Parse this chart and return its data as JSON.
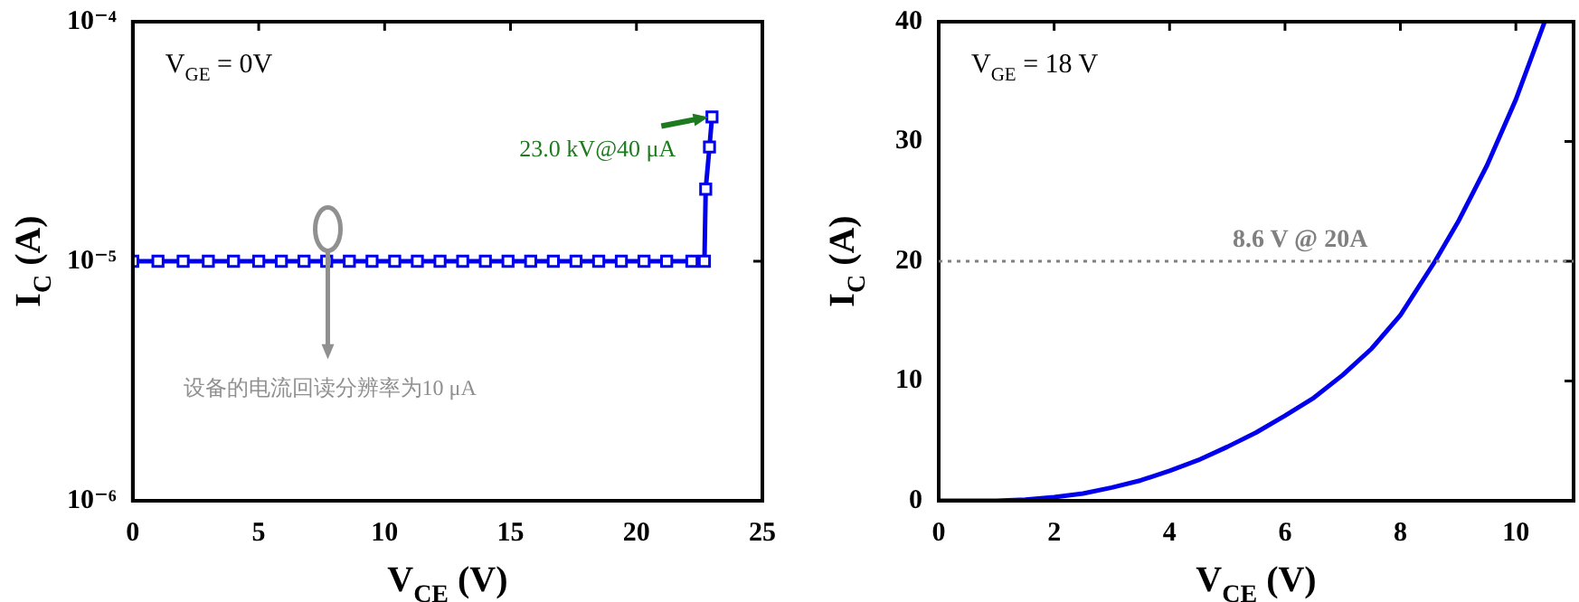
{
  "chart_data": [
    {
      "type": "line",
      "xlabel": "V$_{CE}$ (V)",
      "ylabel": "I$_{C}$ (A)",
      "log": "y",
      "grid": false,
      "legend": false,
      "marker": "square",
      "line_style": "solid",
      "xlim": [
        0,
        25
      ],
      "xticks": [
        0,
        5,
        10,
        15,
        20,
        25
      ],
      "ylim": [
        1e-06,
        0.0001
      ],
      "yticks": [
        {
          "value": 1e-06,
          "label": "10⁻⁶"
        },
        {
          "value": 1e-05,
          "label": "10⁻⁵"
        },
        {
          "value": 0.0001,
          "label": "10⁻⁴"
        }
      ],
      "x": [
        0,
        1,
        2,
        3,
        4,
        5,
        5.9,
        6.8,
        7.7,
        8.6,
        9.5,
        10.4,
        11.3,
        12.2,
        13.1,
        14,
        14.9,
        15.8,
        16.7,
        17.6,
        18.5,
        19.4,
        20.3,
        21.2,
        22.2,
        22.7,
        22.75,
        22.9,
        23.0
      ],
      "series": [
        {
          "color": "#0000ee",
          "values": [
            1e-05,
            1e-05,
            1e-05,
            1e-05,
            1e-05,
            1e-05,
            1e-05,
            1e-05,
            1e-05,
            1e-05,
            1e-05,
            1e-05,
            1e-05,
            1e-05,
            1e-05,
            1e-05,
            1e-05,
            1e-05,
            1e-05,
            1e-05,
            1e-05,
            1e-05,
            1e-05,
            1e-05,
            1e-05,
            1e-05,
            2e-05,
            3e-05,
            4e-05
          ]
        }
      ],
      "annotations": [
        "V$_{GE}$ = 0V",
        {
          "text": "23.0 kV@40 μA",
          "x": 23.0,
          "y": 4e-05
        },
        "设备的电流回读分辨率为10 μA"
      ]
    },
    {
      "type": "line",
      "xlabel": "V$_{CE}$ (V)",
      "ylabel": "I$_{C}$ (A)",
      "grid": false,
      "legend": false,
      "marker": "none",
      "line_style": "solid",
      "xlim": [
        0,
        11
      ],
      "xticks": [
        0,
        2,
        4,
        6,
        8,
        10
      ],
      "ylim": [
        0,
        40
      ],
      "yticks": [
        0,
        10,
        20,
        30,
        40
      ],
      "x": [
        0,
        1,
        1.5,
        2,
        2.5,
        3,
        3.5,
        4,
        4.5,
        5,
        5.5,
        6,
        6.5,
        7,
        7.5,
        8,
        8.6,
        9,
        9.5,
        10,
        10.5
      ],
      "series": [
        {
          "color": "#0000ee",
          "values": [
            0,
            0,
            0.1,
            0.3,
            0.6,
            1.1,
            1.7,
            2.5,
            3.4,
            4.5,
            5.7,
            7.1,
            8.6,
            10.5,
            12.7,
            15.5,
            20,
            23.3,
            28,
            33.5,
            40
          ]
        }
      ],
      "ref_lines": [
        {
          "axis": "y",
          "value": 20,
          "label": "8.6 V @ 20A",
          "color": "#808080",
          "line_style": "dotted"
        }
      ],
      "annotations": [
        "V$_{GE}$ = 18 V"
      ]
    }
  ]
}
